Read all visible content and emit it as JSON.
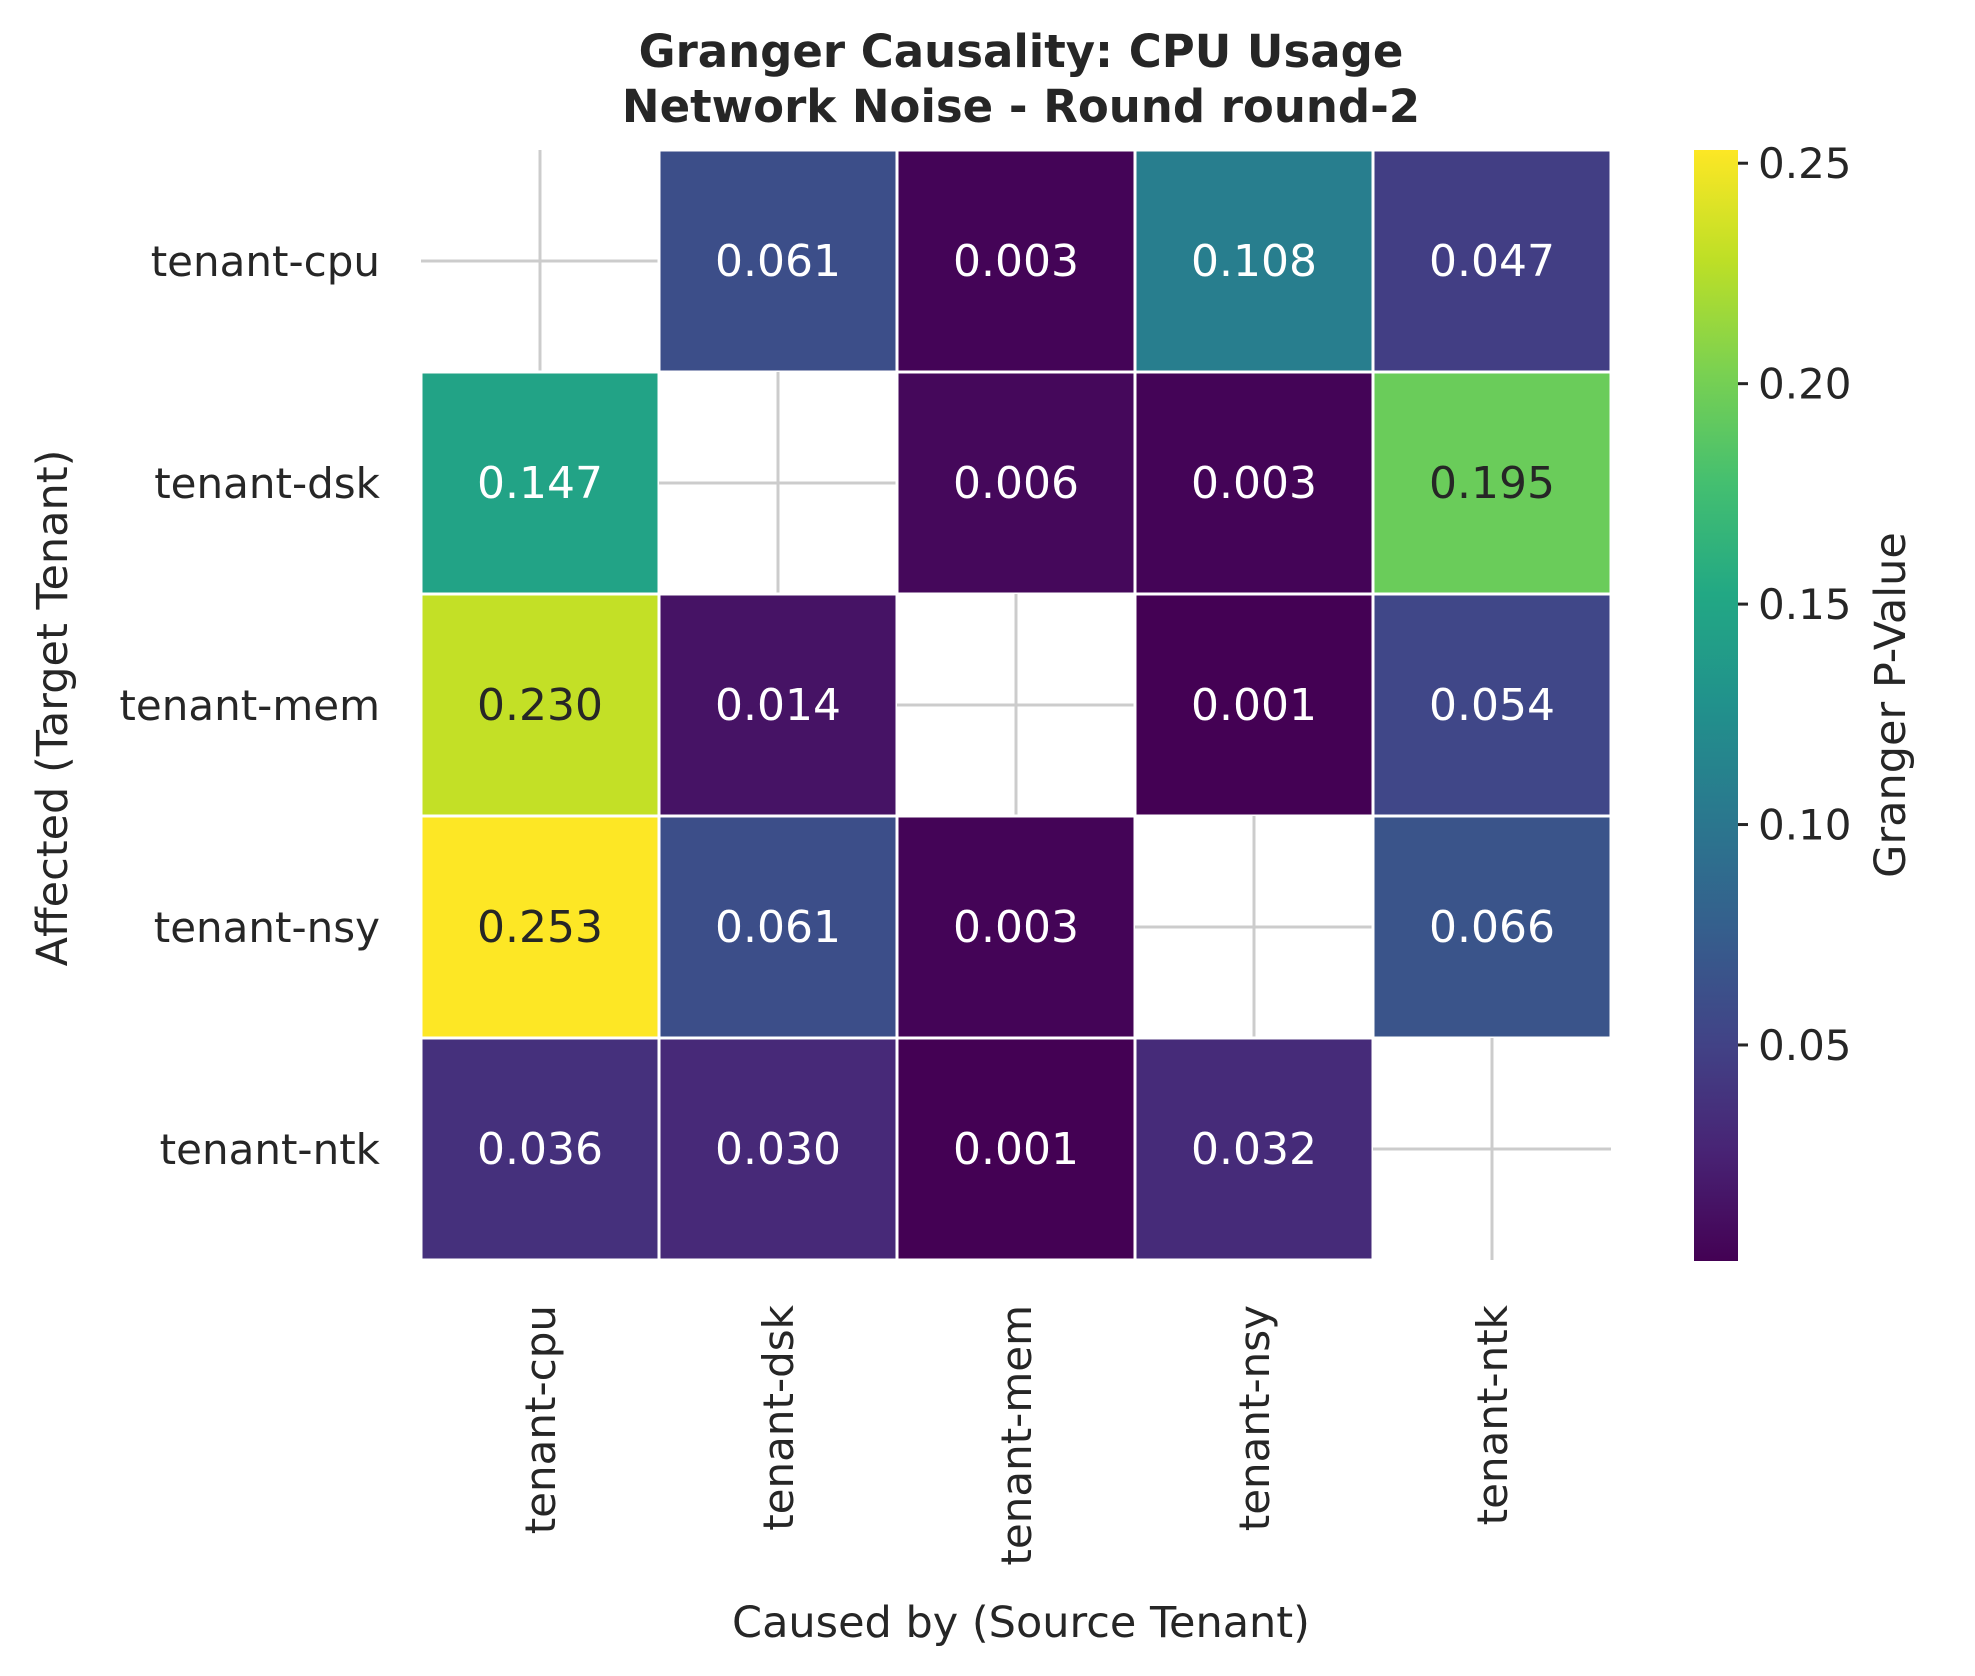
{
  "chart_data": {
    "type": "heatmap",
    "title_line1": "Granger Causality: CPU Usage",
    "title_line2": "Network Noise - Round round-2",
    "xlabel": "Caused by (Source Tenant)",
    "ylabel": "Affected (Target Tenant)",
    "x_categories": [
      "tenant-cpu",
      "tenant-dsk",
      "tenant-mem",
      "tenant-nsy",
      "tenant-ntk"
    ],
    "y_categories": [
      "tenant-cpu",
      "tenant-dsk",
      "tenant-mem",
      "tenant-nsy",
      "tenant-ntk"
    ],
    "values": [
      [
        null,
        0.061,
        0.003,
        0.108,
        0.047
      ],
      [
        0.147,
        null,
        0.006,
        0.003,
        0.195
      ],
      [
        0.23,
        0.014,
        null,
        0.001,
        0.054
      ],
      [
        0.253,
        0.061,
        0.003,
        null,
        0.066
      ],
      [
        0.036,
        0.03,
        0.001,
        0.032,
        null
      ]
    ],
    "value_format": "3 decimals",
    "colormap": "viridis",
    "vmin": 0.001,
    "vmax": 0.253,
    "colorbar_label": "Granger P-Value",
    "colorbar_ticks": [
      0.05,
      0.1,
      0.15,
      0.2,
      0.25
    ],
    "colorbar_tick_labels": [
      "0.05",
      "0.10",
      "0.15",
      "0.20",
      "0.25"
    ],
    "missing_cell_marker": "grey cross",
    "colors": {
      "text_dark": "#262626",
      "text_light": "#ffffff",
      "cell_border": "#ffffff",
      "missing_cross": "#cccccc"
    }
  }
}
